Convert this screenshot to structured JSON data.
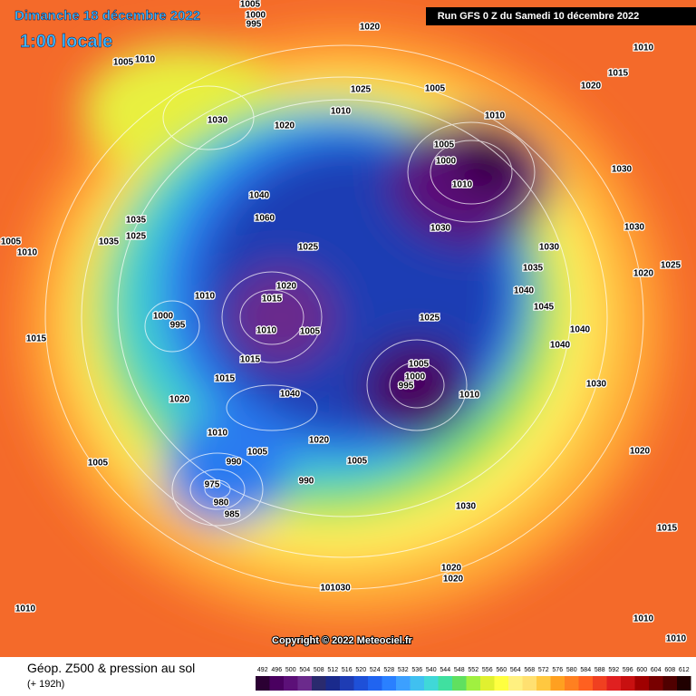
{
  "header": {
    "date": "Dimanche 18 décembre 2022",
    "time": "1:00 locale",
    "run": "Run GFS 0 Z du Samedi 10 décembre 2022"
  },
  "copyright": "Copyright © 2022 Meteociel.fr",
  "footer": {
    "title": "Géop. Z500 & pression au sol",
    "subtitle": "(+ 192h)"
  },
  "scale": {
    "values": [
      492,
      496,
      500,
      504,
      508,
      512,
      516,
      520,
      524,
      528,
      532,
      536,
      540,
      544,
      548,
      552,
      556,
      560,
      564,
      568,
      572,
      576,
      580,
      584,
      588,
      592,
      596,
      600,
      604,
      608,
      612
    ],
    "colors": [
      "#2b0033",
      "#4a0060",
      "#5c1078",
      "#6b2a8c",
      "#2a2a6e",
      "#1a2a8c",
      "#1e3cb4",
      "#1e50d8",
      "#2064f0",
      "#2a80ff",
      "#3ca0ff",
      "#40c0f0",
      "#40d8d8",
      "#40e0a0",
      "#60e060",
      "#a0f040",
      "#e0f030",
      "#ffff40",
      "#fff080",
      "#ffe070",
      "#ffc840",
      "#ffa020",
      "#ff8020",
      "#ff6020",
      "#f04020",
      "#e02020",
      "#c81010",
      "#a00000",
      "#780000",
      "#500000",
      "#200000"
    ]
  },
  "pressure_labels": [
    "1005",
    "1000",
    "995",
    "1020",
    "1005",
    "1010",
    "1010",
    "1015",
    "1020",
    "1025",
    "1005",
    "1030",
    "1020",
    "1010",
    "1010",
    "1005",
    "1000",
    "1010",
    "1030",
    "1030",
    "1030",
    "1040",
    "1060",
    "1035",
    "1025",
    "1005",
    "1010",
    "1035",
    "1025",
    "1030",
    "1035",
    "1020",
    "1025",
    "1040",
    "1045",
    "1020",
    "1015",
    "1010",
    "1000",
    "995",
    "1025",
    "1010",
    "1005",
    "1015",
    "1040",
    "1040",
    "1015",
    "1005",
    "1000",
    "995",
    "1010",
    "1015",
    "1040",
    "1020",
    "1030",
    "1010",
    "1020",
    "1020",
    "1005",
    "1005",
    "990",
    "990",
    "1005",
    "975",
    "980",
    "985",
    "1030",
    "1015",
    "1020",
    "1020",
    "101030",
    "1010",
    "1010",
    "1010"
  ]
}
